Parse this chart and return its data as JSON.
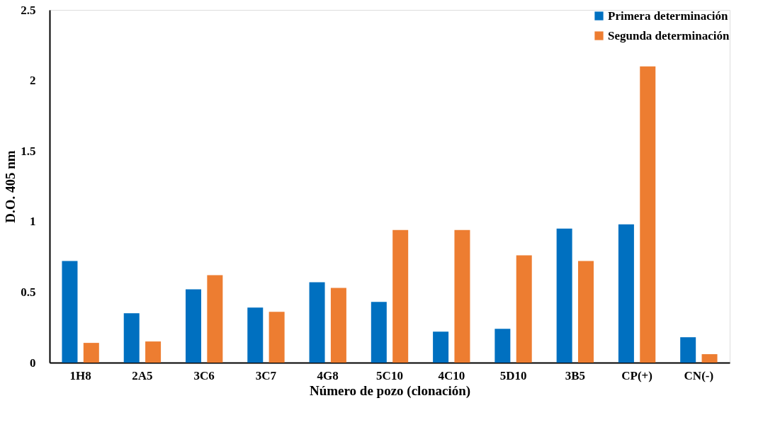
{
  "chart_data": {
    "type": "bar",
    "xlabel": "Número de pozo (clonación)",
    "ylabel": "D.O. 405 nm",
    "categories": [
      "1H8",
      "2A5",
      "3C6",
      "3C7",
      "4G8",
      "5C10",
      "4C10",
      "5D10",
      "3B5",
      "CP(+)",
      "CN(-)"
    ],
    "series": [
      {
        "name": "Primera determinación",
        "color": "#0070c0",
        "values": [
          0.72,
          0.35,
          0.52,
          0.39,
          0.57,
          0.43,
          0.22,
          0.24,
          0.95,
          0.98,
          0.18
        ]
      },
      {
        "name": "Segunda determinación",
        "color": "#ed7d31",
        "values": [
          0.14,
          0.15,
          0.62,
          0.36,
          0.53,
          0.94,
          0.94,
          0.76,
          0.72,
          2.1,
          0.06
        ]
      }
    ],
    "ylim": [
      0,
      2.5
    ],
    "yticks": [
      0,
      0.5,
      1,
      1.5,
      2,
      2.5
    ],
    "grid": false,
    "legend": "top right"
  }
}
